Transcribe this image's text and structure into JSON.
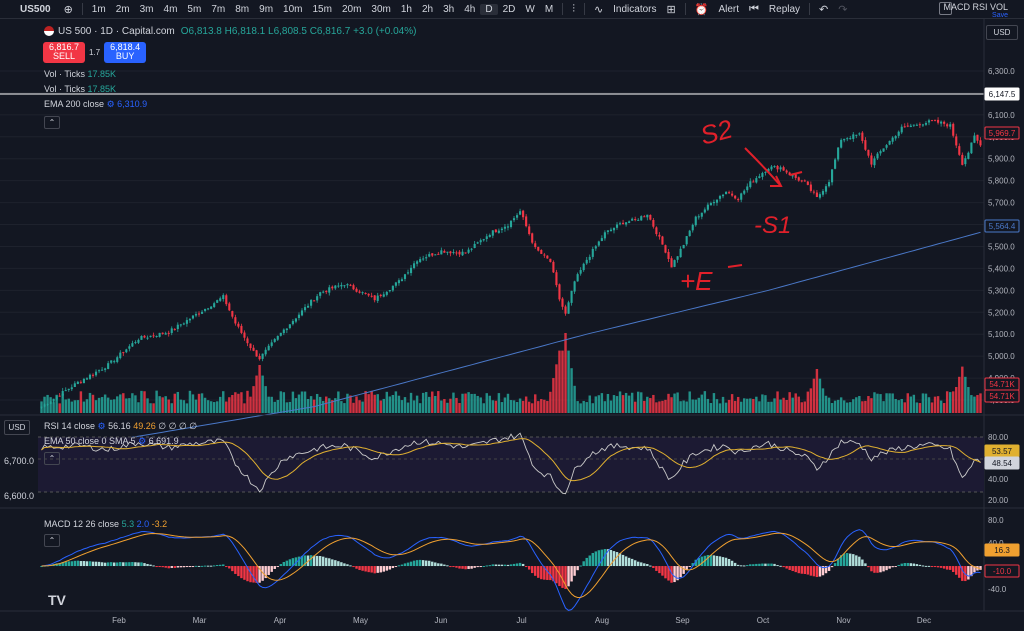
{
  "toolbar": {
    "symbol": "US500",
    "timeframes": [
      "1m",
      "2m",
      "3m",
      "4m",
      "5m",
      "7m",
      "8m",
      "9m",
      "10m",
      "15m",
      "20m",
      "30m",
      "1h",
      "2h",
      "3h",
      "4h",
      "D",
      "2D",
      "W",
      "M"
    ],
    "active_timeframe": "D",
    "indicators_label": "Indicators",
    "alert_label": "Alert",
    "replay_label": "Replay",
    "layout_name": "MACD RSI VOL",
    "save_label": "Save"
  },
  "legend": {
    "title": "US 500 · 1D · Capital.com",
    "ohlc": "O6,813.8 H6,818.1 L6,808.5 C6,816.7 +3.0 (+0.04%)",
    "sell_price": "6,816.7",
    "sell_label": "SELL",
    "spread": "1.7",
    "buy_price": "6,818.4",
    "buy_label": "BUY",
    "vol1_name": "Vol · Ticks",
    "vol1_value": "17.85K",
    "vol2_name": "Vol · Ticks",
    "vol2_value": "17.85K",
    "ema_name": "EMA 200 close",
    "ema_value": "6,310.9"
  },
  "rsi_legend": {
    "name": "RSI 14 close",
    "v1": "56.16",
    "v2": "49.26",
    "rest": "∅ ∅ ∅ ∅"
  },
  "ema50_legend": {
    "name": "EMA 50 close 0 SMA 5",
    "value": "6,691.9"
  },
  "macd_legend": {
    "name": "MACD 12 26 close",
    "v1": "5.3",
    "v2": "2.0",
    "v3": "-3.2"
  },
  "currency": "USD",
  "left_axis": {
    "labels": [
      "6,700.0",
      "6,600.0"
    ]
  },
  "annotations": {
    "s2": "S2",
    "s1": "-S1",
    "entry": "+E"
  },
  "colors": {
    "up": "#26a69a",
    "down": "#f23645",
    "ema200": "#4a78c8",
    "rsi": "#c9c9c9",
    "rsi_ma": "#e0b030",
    "macd": "#2962ff",
    "signal": "#f0a030",
    "annotation": "#e0202a"
  },
  "chart_data": [
    {
      "type": "line",
      "title": "US 500 · 1D · Capital.com",
      "y_axis_labels": [
        "6,300.0",
        "6,200.0",
        "6,100.0",
        "6,000.0",
        "5,900.0",
        "5,800.0",
        "5,700.0",
        "5,600.0",
        "5,500.0",
        "5,400.0",
        "5,300.0",
        "5,200.0",
        "5,100.0",
        "5,000.0",
        "4,900.0",
        "4,800.0"
      ],
      "ylim": [
        4800,
        6350
      ],
      "x_labels": [
        "Feb",
        "Mar",
        "Apr",
        "May",
        "Jun",
        "Jul",
        "Aug",
        "Sep",
        "Oct",
        "Nov",
        "Dec"
      ],
      "price_anchors": [
        [
          0,
          4770
        ],
        [
          12,
          4880
        ],
        [
          22,
          4960
        ],
        [
          32,
          5080
        ],
        [
          42,
          5110
        ],
        [
          50,
          5180
        ],
        [
          60,
          5270
        ],
        [
          64,
          5150
        ],
        [
          70,
          5020
        ],
        [
          72,
          4990
        ],
        [
          80,
          5120
        ],
        [
          92,
          5290
        ],
        [
          100,
          5330
        ],
        [
          110,
          5260
        ],
        [
          118,
          5340
        ],
        [
          124,
          5440
        ],
        [
          132,
          5480
        ],
        [
          140,
          5470
        ],
        [
          148,
          5560
        ],
        [
          154,
          5600
        ],
        [
          158,
          5660
        ],
        [
          163,
          5490
        ],
        [
          168,
          5430
        ],
        [
          171,
          5260
        ],
        [
          173,
          5190
        ],
        [
          176,
          5340
        ],
        [
          180,
          5440
        ],
        [
          186,
          5560
        ],
        [
          192,
          5610
        ],
        [
          196,
          5620
        ],
        [
          200,
          5650
        ],
        [
          206,
          5480
        ],
        [
          208,
          5410
        ],
        [
          212,
          5510
        ],
        [
          216,
          5630
        ],
        [
          222,
          5710
        ],
        [
          226,
          5750
        ],
        [
          230,
          5720
        ],
        [
          234,
          5790
        ],
        [
          240,
          5860
        ],
        [
          244,
          5860
        ],
        [
          248,
          5820
        ],
        [
          252,
          5790
        ],
        [
          256,
          5720
        ],
        [
          260,
          5800
        ],
        [
          264,
          5990
        ],
        [
          270,
          6010
        ],
        [
          274,
          5880
        ],
        [
          278,
          5950
        ],
        [
          284,
          6040
        ],
        [
          290,
          6060
        ],
        [
          294,
          6070
        ],
        [
          298,
          6060
        ],
        [
          300,
          6050
        ],
        [
          304,
          5880
        ],
        [
          306,
          5930
        ],
        [
          308,
          6000
        ],
        [
          310,
          5960
        ]
      ],
      "ema200_anchors": [
        [
          0,
          4560
        ],
        [
          90,
          4770
        ],
        [
          180,
          5100
        ],
        [
          240,
          5300
        ],
        [
          310,
          5564.4
        ]
      ],
      "volume_spikes": [
        [
          72,
          "0.6"
        ],
        [
          171,
          "0.78"
        ],
        [
          173,
          "1.0"
        ],
        [
          256,
          "0.55"
        ],
        [
          304,
          "0.58"
        ]
      ],
      "price_labels": {
        "ema200": "6,147.5",
        "last_close": "5,969.7",
        "ema_lower": "5,564.4",
        "vol1": "54.71K",
        "vol2": "54.71K"
      }
    },
    {
      "type": "line",
      "title": "RSI 14 close",
      "y_axis_labels": [
        "80.00",
        "60.00",
        "40.00",
        "20.00"
      ],
      "ylim": [
        20,
        85
      ],
      "series": [
        {
          "name": "RSI",
          "anchors": [
            [
              0,
              70
            ],
            [
              12,
              72
            ],
            [
              22,
              68
            ],
            [
              32,
              75
            ],
            [
              42,
              70
            ],
            [
              50,
              74
            ],
            [
              60,
              76
            ],
            [
              64,
              55
            ],
            [
              70,
              35
            ],
            [
              72,
              30
            ],
            [
              80,
              60
            ],
            [
              92,
              70
            ],
            [
              100,
              72
            ],
            [
              110,
              60
            ],
            [
              118,
              70
            ],
            [
              124,
              76
            ],
            [
              132,
              74
            ],
            [
              140,
              70
            ],
            [
              148,
              76
            ],
            [
              154,
              80
            ],
            [
              158,
              82
            ],
            [
              163,
              50
            ],
            [
              168,
              42
            ],
            [
              171,
              30
            ],
            [
              173,
              28
            ],
            [
              176,
              48
            ],
            [
              180,
              62
            ],
            [
              186,
              70
            ],
            [
              192,
              72
            ],
            [
              196,
              70
            ],
            [
              200,
              70
            ],
            [
              206,
              45
            ],
            [
              208,
              40
            ],
            [
              212,
              55
            ],
            [
              216,
              65
            ],
            [
              222,
              70
            ],
            [
              226,
              72
            ],
            [
              230,
              65
            ],
            [
              234,
              70
            ],
            [
              240,
              74
            ],
            [
              244,
              70
            ],
            [
              248,
              65
            ],
            [
              252,
              62
            ],
            [
              256,
              50
            ],
            [
              260,
              62
            ],
            [
              264,
              76
            ],
            [
              270,
              74
            ],
            [
              274,
              60
            ],
            [
              278,
              65
            ],
            [
              284,
              70
            ],
            [
              290,
              72
            ],
            [
              294,
              72
            ],
            [
              298,
              70
            ],
            [
              300,
              68
            ],
            [
              304,
              40
            ],
            [
              306,
              48
            ],
            [
              308,
              58
            ],
            [
              310,
              56
            ]
          ]
        }
      ],
      "price_labels": [
        "53.57",
        "48.54"
      ]
    },
    {
      "type": "bar",
      "title": "MACD 12 26 close",
      "y_axis_labels": [
        "80.0",
        "40.0",
        "-40.0"
      ],
      "ylim": [
        -45,
        85
      ],
      "price_labels": [
        "16.3",
        "-10.0"
      ]
    }
  ]
}
